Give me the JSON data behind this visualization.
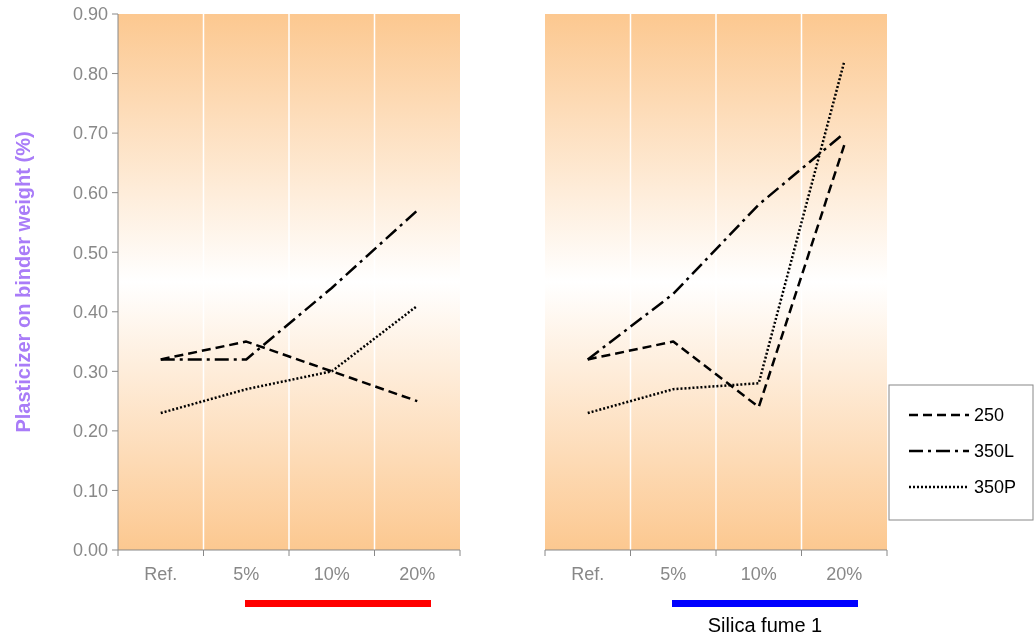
{
  "chart_data": [
    {
      "type": "line",
      "ylabel": "Plasticizer on binder weight (%)",
      "categories": [
        "Ref.",
        "5%",
        "10%",
        "20%"
      ],
      "ylim": [
        0,
        0.9
      ],
      "yticks": [
        {
          "value": 0,
          "label": "0.00"
        },
        {
          "value": 0.1,
          "label": "0.10"
        },
        {
          "value": 0.2,
          "label": "0.20"
        },
        {
          "value": 0.3,
          "label": "0.30"
        },
        {
          "value": 0.4,
          "label": "0.40"
        },
        {
          "value": 0.5,
          "label": "0.50"
        },
        {
          "value": 0.6,
          "label": "0.60"
        },
        {
          "value": 0.7,
          "label": "0.70"
        },
        {
          "value": 0.8,
          "label": "0.80"
        },
        {
          "value": 0.9,
          "label": "0.90"
        }
      ],
      "grid": "x",
      "marker": "none",
      "series": [
        {
          "color": "#000000",
          "line_style": "dashed",
          "values": [
            0.32,
            0.35,
            0.3,
            0.25
          ]
        },
        {
          "color": "#000000",
          "line_style": "dashdot",
          "values": [
            0.32,
            0.32,
            0.44,
            0.57
          ]
        },
        {
          "color": "#000000",
          "line_style": "dotted",
          "values": [
            0.23,
            0.27,
            0.3,
            0.41
          ]
        }
      ]
    },
    {
      "type": "line",
      "xlabel": "Silica fume 1",
      "categories": [
        "Ref.",
        "5%",
        "10%",
        "20%"
      ],
      "ylim": [
        0,
        0.9
      ],
      "tick_labels": "x",
      "grid": "x",
      "marker": "none",
      "legend": "right",
      "series": [
        {
          "name": "250",
          "color": "#000000",
          "line_style": "dashed",
          "values": [
            0.32,
            0.35,
            0.24,
            0.68
          ]
        },
        {
          "name": "350L",
          "color": "#000000",
          "line_style": "dashdot",
          "values": [
            0.32,
            0.43,
            0.58,
            0.7
          ]
        },
        {
          "name": "350P",
          "color": "#000000",
          "line_style": "dotted",
          "values": [
            0.23,
            0.27,
            0.28,
            0.82
          ]
        }
      ]
    }
  ]
}
